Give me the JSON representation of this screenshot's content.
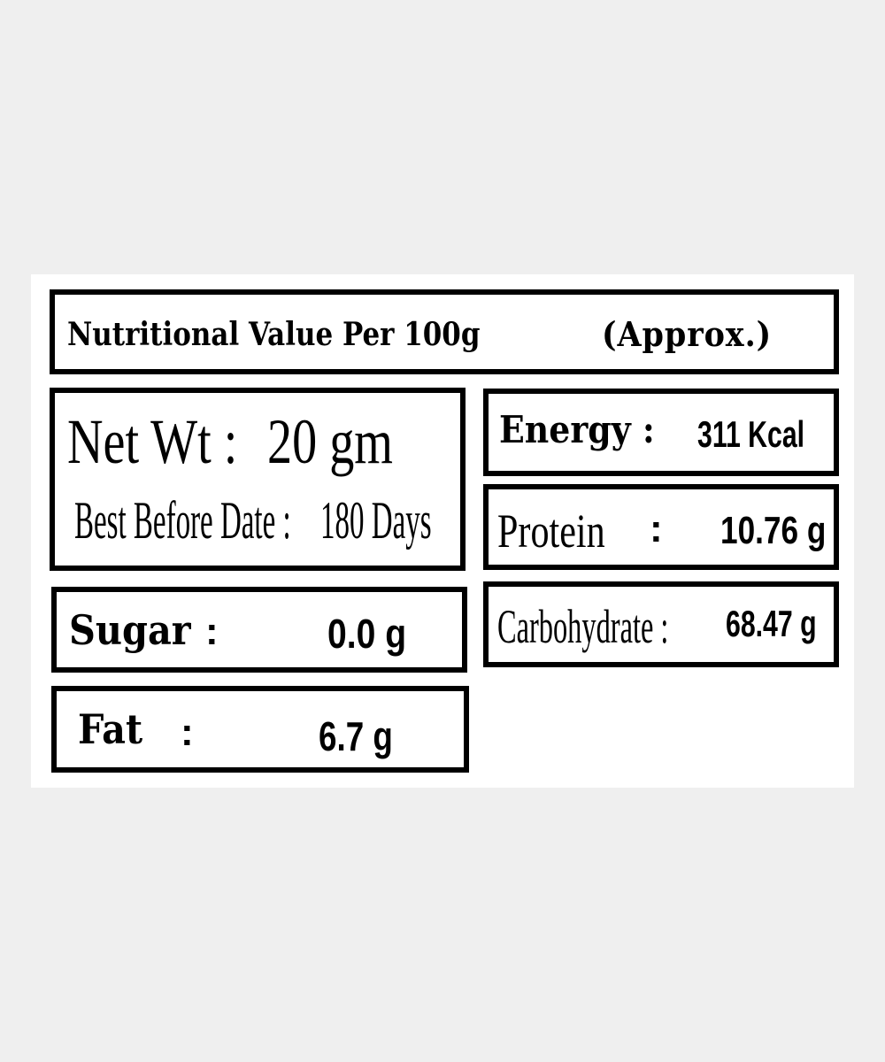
{
  "title": "Nutritional Value Per 100g",
  "title_note": "(Approx.)",
  "net_weight": {
    "label": "Net Wt :",
    "value": "20 gm"
  },
  "best_before": {
    "label": "Best Before Date :",
    "value": "180 Days"
  },
  "nutrients": {
    "energy": {
      "label": "Energy :",
      "value": "311 Kcal"
    },
    "protein": {
      "label": "Protein",
      "colon": ":",
      "value": "10.76 g"
    },
    "carbohydrate": {
      "label": "Carbohydrate :",
      "value": "68.47 g"
    },
    "sugar": {
      "label": "Sugar",
      "colon": ":",
      "value": "0.0 g"
    },
    "fat": {
      "label": "Fat",
      "colon": ":",
      "value": "6.7 g"
    }
  }
}
